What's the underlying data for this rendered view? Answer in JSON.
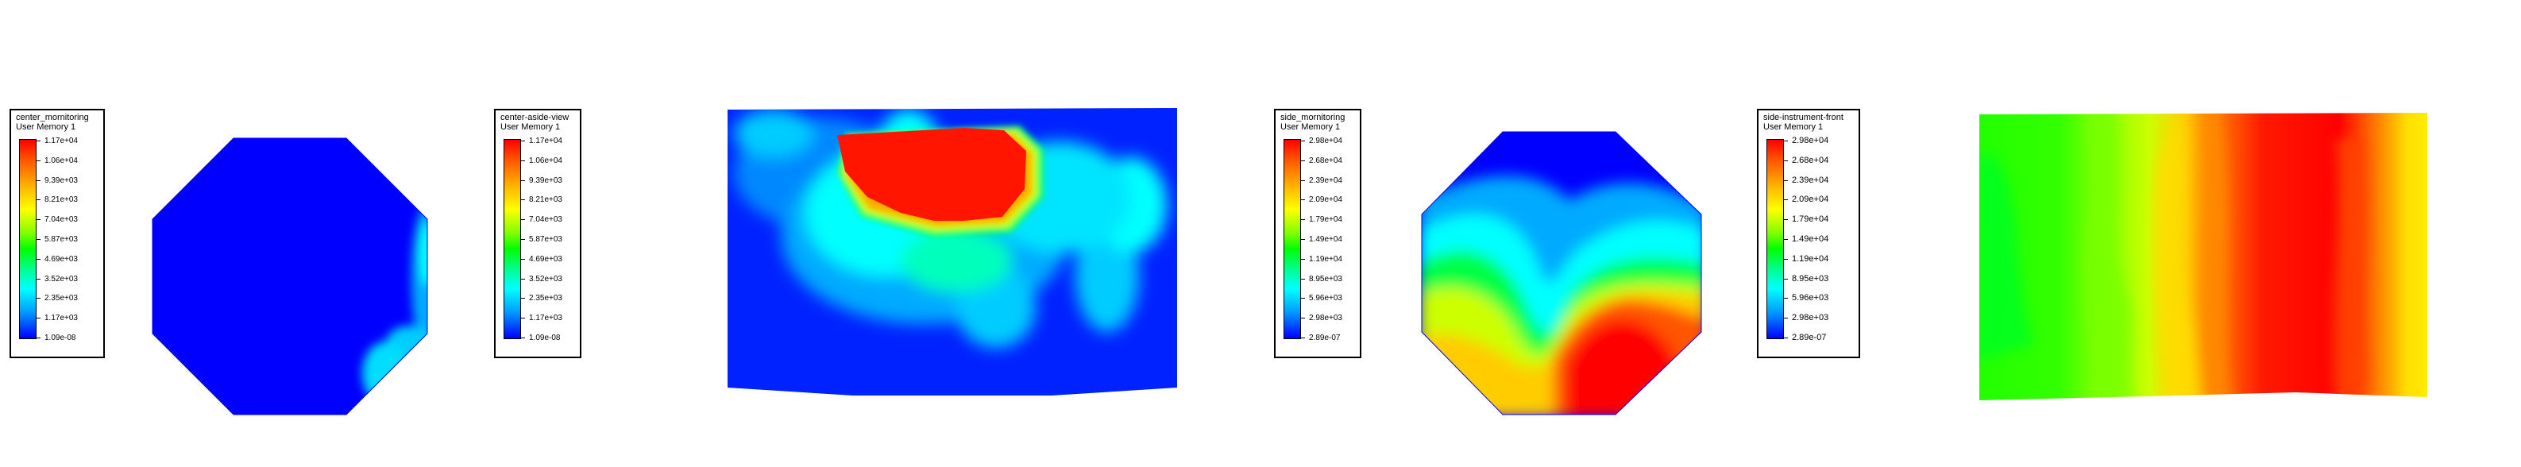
{
  "colormap": [
    "#0000ff",
    "#00ffff",
    "#00ff00",
    "#ffff00",
    "#ff0000"
  ],
  "panels": [
    {
      "title": "center_mornitoring",
      "variable": "User Memory 1",
      "labels": [
        "1.17e+04",
        "1.06e+04",
        "9.39e+03",
        "8.21e+03",
        "7.04e+03",
        "5.87e+03",
        "4.69e+03",
        "3.52e+03",
        "2.35e+03",
        "1.17e+03",
        "1.09e-08"
      ]
    },
    {
      "title": "center-aside-view",
      "variable": "User Memory 1",
      "labels": [
        "1.17e+04",
        "1.06e+04",
        "9.39e+03",
        "8.21e+03",
        "7.04e+03",
        "5.87e+03",
        "4.69e+03",
        "3.52e+03",
        "2.35e+03",
        "1.17e+03",
        "1.09e-08"
      ]
    },
    {
      "title": "side_mornitoring",
      "variable": "User Memory 1",
      "labels": [
        "2.98e+04",
        "2.68e+04",
        "2.39e+04",
        "2.09e+04",
        "1.79e+04",
        "1.49e+04",
        "1.19e+04",
        "8.95e+03",
        "5.96e+03",
        "2.98e+03",
        "2.89e-07"
      ]
    },
    {
      "title": "side-instrument-front",
      "variable": "User Memory 1",
      "labels": [
        "2.98e+04",
        "2.68e+04",
        "2.39e+04",
        "2.09e+04",
        "1.79e+04",
        "1.49e+04",
        "1.19e+04",
        "8.95e+03",
        "5.96e+03",
        "2.98e+03",
        "2.89e-07"
      ]
    }
  ]
}
